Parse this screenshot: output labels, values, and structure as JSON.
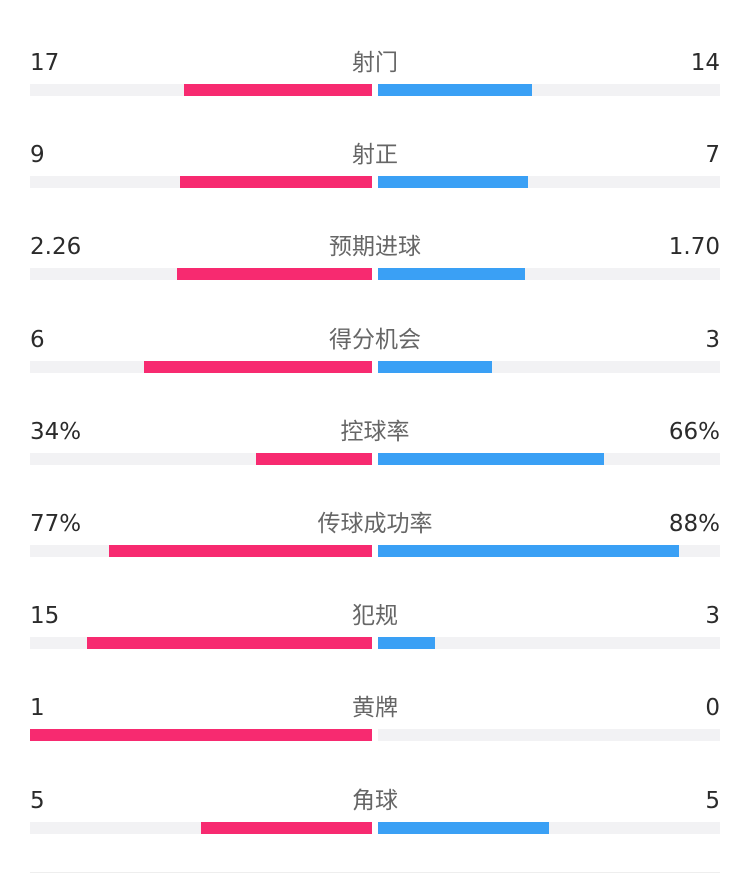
{
  "colors": {
    "home": "#f72a70",
    "away": "#3aa0f5",
    "track": "#f2f2f4"
  },
  "stats": [
    {
      "label": "射门",
      "home": "17",
      "away": "14",
      "home_frac": 0.55,
      "away_frac": 0.45
    },
    {
      "label": "射正",
      "home": "9",
      "away": "7",
      "home_frac": 0.5625,
      "away_frac": 0.4375
    },
    {
      "label": "预期进球",
      "home": "2.26",
      "away": "1.70",
      "home_frac": 0.57,
      "away_frac": 0.43
    },
    {
      "label": "得分机会",
      "home": "6",
      "away": "3",
      "home_frac": 0.667,
      "away_frac": 0.333
    },
    {
      "label": "控球率",
      "home": "34%",
      "away": "66%",
      "home_frac": 0.34,
      "away_frac": 0.66
    },
    {
      "label": "传球成功率",
      "home": "77%",
      "away": "88%",
      "home_frac": 0.77,
      "away_frac": 0.88
    },
    {
      "label": "犯规",
      "home": "15",
      "away": "3",
      "home_frac": 0.833,
      "away_frac": 0.167
    },
    {
      "label": "黄牌",
      "home": "1",
      "away": "0",
      "home_frac": 1.0,
      "away_frac": 0.0
    },
    {
      "label": "角球",
      "home": "5",
      "away": "5",
      "home_frac": 0.5,
      "away_frac": 0.5
    }
  ]
}
